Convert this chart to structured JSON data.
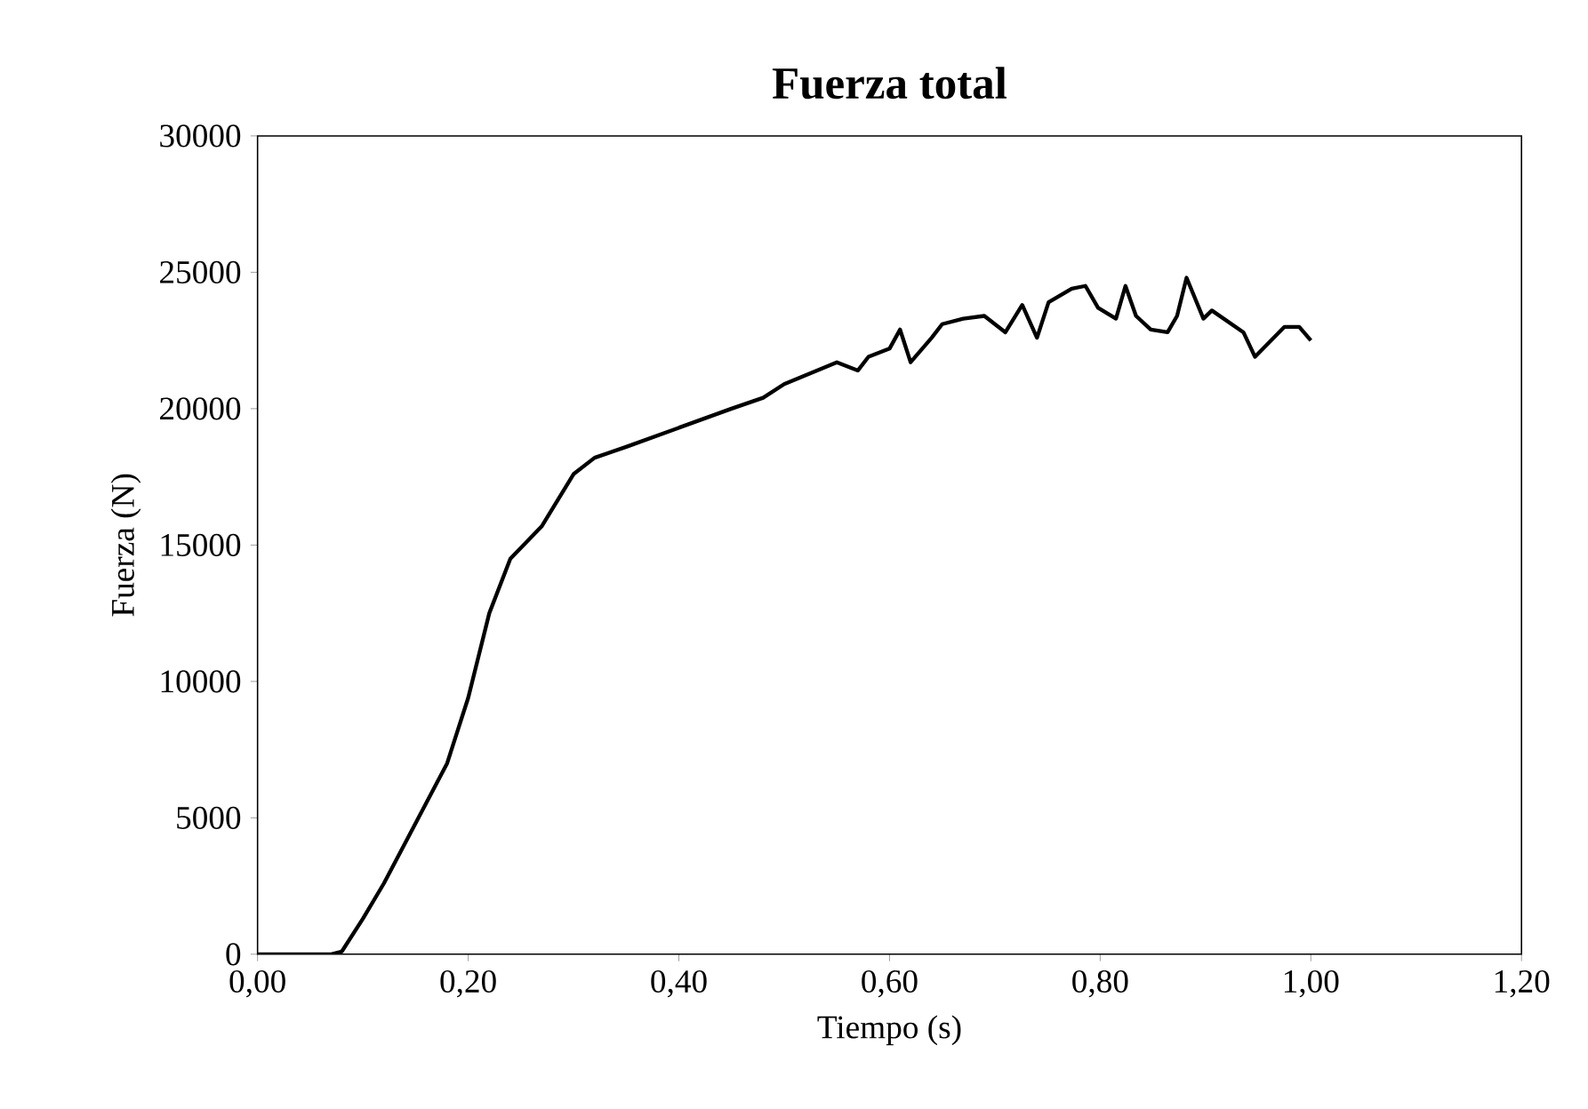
{
  "chart_data": {
    "type": "line",
    "title": "Fuerza total",
    "xlabel": "Tiempo (s)",
    "ylabel": "Fuerza (N)",
    "xlim": [
      0,
      1.2
    ],
    "ylim": [
      0,
      30000
    ],
    "xticks": [
      {
        "value": 0,
        "label": "0,00"
      },
      {
        "value": 0.2,
        "label": "0,20"
      },
      {
        "value": 0.4,
        "label": "0,40"
      },
      {
        "value": 0.6,
        "label": "0,60"
      },
      {
        "value": 0.8,
        "label": "0,80"
      },
      {
        "value": 1.0,
        "label": "1,00"
      },
      {
        "value": 1.2,
        "label": "1,20"
      }
    ],
    "yticks": [
      0,
      5000,
      10000,
      15000,
      20000,
      25000,
      30000
    ],
    "marker": "none",
    "line_style": "solid",
    "series": [
      {
        "color": "#000000",
        "x": [
          0,
          0.07,
          0.08,
          0.1,
          0.12,
          0.15,
          0.18,
          0.2,
          0.22,
          0.24,
          0.27,
          0.3,
          0.32,
          0.35,
          0.4,
          0.45,
          0.48,
          0.5,
          0.55,
          0.57,
          0.58,
          0.6,
          0.61,
          0.62,
          0.64,
          0.65,
          0.67,
          0.69,
          0.71,
          0.726,
          0.74,
          0.751,
          0.773,
          0.786,
          0.798,
          0.815,
          0.824,
          0.834,
          0.848,
          0.864,
          0.873,
          0.882,
          0.898,
          0.906,
          0.936,
          0.947,
          0.975,
          0.989,
          1.0
        ],
        "values": [
          0,
          0,
          100,
          1300,
          2600,
          4800,
          7000,
          9400,
          12500,
          14500,
          15700,
          17600,
          18200,
          18600,
          19300,
          20000,
          20400,
          20900,
          21700,
          21400,
          21900,
          22200,
          22900,
          21700,
          22600,
          23100,
          23300,
          23400,
          22800,
          23800,
          22600,
          23900,
          24400,
          24500,
          23700,
          23300,
          24500,
          23400,
          22900,
          22800,
          23400,
          24800,
          23300,
          23600,
          22800,
          21900,
          23000,
          23000,
          22500
        ]
      }
    ]
  }
}
